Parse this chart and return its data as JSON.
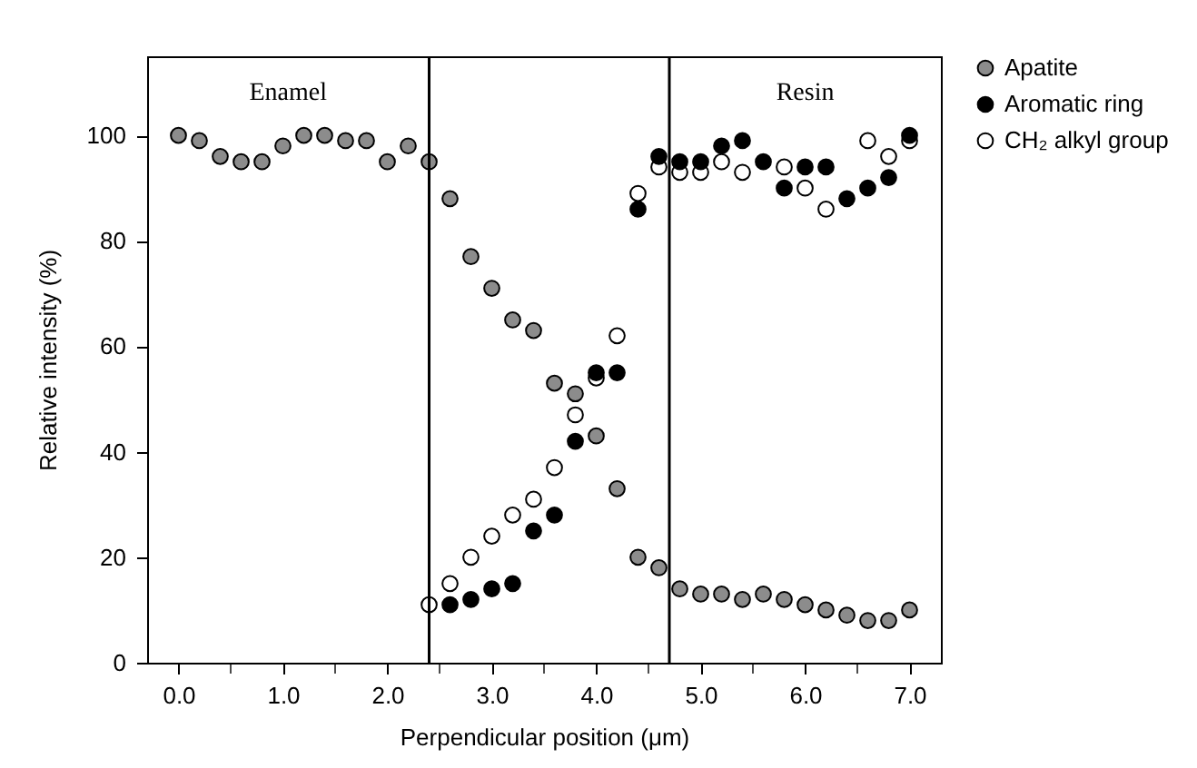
{
  "chart_data": {
    "type": "scatter",
    "xlabel": "Perpendicular position (μm)",
    "ylabel": "Relative intensity (%)",
    "xlim": [
      -0.3,
      7.3
    ],
    "ylim": [
      0,
      115
    ],
    "xticks": [
      {
        "value": 0,
        "label": "0.0"
      },
      {
        "value": 0.5,
        "label": null
      },
      {
        "value": 1,
        "label": "1.0"
      },
      {
        "value": 1.5,
        "label": null
      },
      {
        "value": 2,
        "label": "2.0"
      },
      {
        "value": 2.5,
        "label": null
      },
      {
        "value": 3,
        "label": "3.0"
      },
      {
        "value": 3.5,
        "label": null
      },
      {
        "value": 4,
        "label": "4.0"
      },
      {
        "value": 4.5,
        "label": null
      },
      {
        "value": 5,
        "label": "5.0"
      },
      {
        "value": 5.5,
        "label": null
      },
      {
        "value": 6,
        "label": "6.0"
      },
      {
        "value": 6.5,
        "label": null
      },
      {
        "value": 7,
        "label": "7.0"
      }
    ],
    "yticks": [
      0,
      20,
      40,
      60,
      80,
      100
    ],
    "grid": false,
    "legend": "right",
    "marker": "circle",
    "ref_lines": [
      {
        "axis": "x",
        "value": 2.4,
        "color": "#000000"
      },
      {
        "axis": "x",
        "value": 4.7,
        "color": "#000000"
      }
    ],
    "annotations": [
      "Enamel",
      "Resin"
    ],
    "series": [
      {
        "name": "Apatite",
        "color": "#8c8c8c",
        "x": [
          0,
          0.2,
          0.4,
          0.6,
          0.8,
          1,
          1.2,
          1.4,
          1.6,
          1.8,
          2,
          2.2,
          2.4,
          2.6,
          2.8,
          3,
          3.2,
          3.4,
          3.6,
          3.8,
          4,
          4.2,
          4.4,
          4.6,
          4.8,
          5,
          5.2,
          5.4,
          5.6,
          5.8,
          6,
          6.2,
          6.4,
          6.6,
          6.8,
          7
        ],
        "values": [
          100,
          99,
          96,
          95,
          95,
          98,
          100,
          100,
          99,
          99,
          95,
          98,
          95,
          88,
          77,
          71,
          65,
          63,
          53,
          51,
          43,
          33,
          20,
          18,
          14,
          13,
          13,
          12,
          13,
          12,
          11,
          10,
          9,
          8,
          8,
          10
        ]
      },
      {
        "name": "Aromatic ring",
        "color": "#000000",
        "x": [
          2.6,
          2.8,
          3,
          3.2,
          3.4,
          3.6,
          3.8,
          4,
          4.2,
          4.4,
          4.6,
          4.8,
          5,
          5.2,
          5.4,
          5.6,
          5.8,
          6,
          6.2,
          6.4,
          6.6,
          6.8,
          7
        ],
        "values": [
          11,
          12,
          14,
          15,
          25,
          28,
          42,
          55,
          55,
          86,
          96,
          95,
          95,
          98,
          99,
          95,
          90,
          94,
          94,
          88,
          90,
          92,
          100
        ]
      },
      {
        "name": "CH₂ alkyl group",
        "color": "#ffffff",
        "x": [
          2.4,
          2.6,
          2.8,
          3,
          3.2,
          3.4,
          3.6,
          3.8,
          4,
          4.2,
          4.4,
          4.6,
          4.8,
          5,
          5.2,
          5.4,
          5.6,
          5.8,
          6,
          6.2,
          6.4,
          6.6,
          6.8,
          7
        ],
        "values": [
          11,
          15,
          20,
          24,
          28,
          31,
          37,
          47,
          54,
          62,
          89,
          94,
          93,
          93,
          95,
          93,
          null,
          94,
          90,
          86,
          null,
          99,
          96,
          99
        ]
      }
    ]
  }
}
